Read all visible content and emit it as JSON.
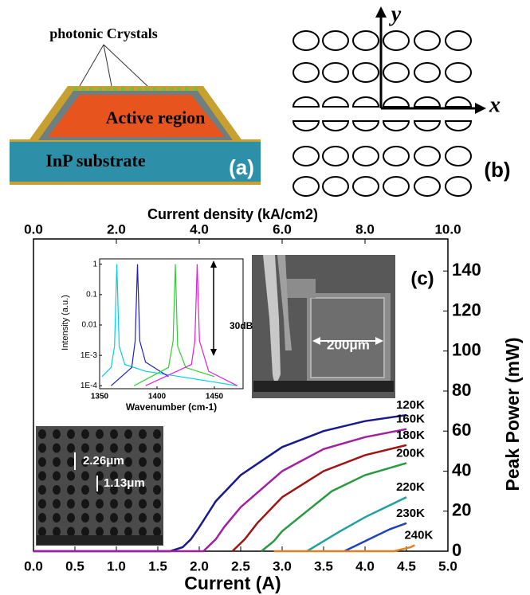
{
  "panel_a": {
    "labels": [
      "photonic Crystals",
      "Active region",
      "InP substrate"
    ],
    "tag": "(a)"
  },
  "panel_b": {
    "axis_x": "x",
    "axis_y": "y",
    "tag": "(b)"
  },
  "panel_c": {
    "tag": "(c)",
    "sem_large_label": "200μm",
    "sem_small_labels": [
      "2.26μm",
      "1.13μm"
    ],
    "spectrum_span": "30dB"
  },
  "chart_data": [
    {
      "type": "line",
      "x_label": "Current (A)",
      "x2_label": "Current density (kA/cm2)",
      "y_label": "Peak Power (mW)",
      "xlim": [
        0,
        5
      ],
      "xticks": [
        {
          "value": 0,
          "label": "0.0"
        },
        {
          "value": 0.5,
          "label": "0.5"
        },
        {
          "value": 1,
          "label": "1.0"
        },
        {
          "value": 1.5,
          "label": "1.5"
        },
        {
          "value": 2,
          "label": "2.0"
        },
        {
          "value": 2.5,
          "label": "2.5"
        },
        {
          "value": 3,
          "label": "3.0"
        },
        {
          "value": 3.5,
          "label": "3.5"
        },
        {
          "value": 4,
          "label": "4.0"
        },
        {
          "value": 4.5,
          "label": "4.5"
        },
        {
          "value": 5,
          "label": "5.0"
        }
      ],
      "x2lim": [
        0,
        10
      ],
      "x2ticks": [
        {
          "value": 0,
          "label": "0.0"
        },
        {
          "value": 2,
          "label": "2.0"
        },
        {
          "value": 4,
          "label": "4.0"
        },
        {
          "value": 6,
          "label": "6.0"
        },
        {
          "value": 8,
          "label": "8.0"
        },
        {
          "value": 10,
          "label": "10.0"
        }
      ],
      "ylim": [
        0,
        156
      ],
      "yticks": [
        0,
        20,
        40,
        60,
        80,
        100,
        120,
        140
      ],
      "series": [
        {
          "name": "120K",
          "color": "#1a1a8c",
          "x": [
            0,
            1.65,
            1.8,
            1.9,
            2.0,
            2.2,
            2.5,
            3.0,
            3.5,
            4.0,
            4.5
          ],
          "values": [
            0,
            0,
            2,
            6,
            12,
            25,
            38,
            52,
            60,
            65,
            68
          ]
        },
        {
          "name": "160K",
          "color": "#a020a0",
          "x": [
            0,
            2.05,
            2.2,
            2.3,
            2.5,
            3.0,
            3.5,
            4.0,
            4.5
          ],
          "values": [
            0,
            0,
            6,
            12,
            22,
            40,
            51,
            57,
            61
          ]
        },
        {
          "name": "180K",
          "color": "#a01414",
          "x": [
            2.4,
            2.55,
            2.7,
            3.0,
            3.5,
            4.0,
            4.5
          ],
          "values": [
            0,
            6,
            14,
            27,
            40,
            48,
            53
          ]
        },
        {
          "name": "200K",
          "color": "#2a9a40",
          "x": [
            2.75,
            2.9,
            3.0,
            3.3,
            3.6,
            4.0,
            4.5
          ],
          "values": [
            0,
            5,
            10,
            20,
            30,
            38,
            44
          ]
        },
        {
          "name": "220K",
          "color": "#20a0a0",
          "x": [
            3.3,
            3.5,
            3.7,
            4.0,
            4.3,
            4.5
          ],
          "values": [
            0,
            5,
            10,
            17,
            23,
            27
          ]
        },
        {
          "name": "230K",
          "color": "#2040c0",
          "x": [
            3.75,
            3.9,
            4.1,
            4.3,
            4.5
          ],
          "values": [
            0,
            3,
            7,
            11,
            14
          ]
        },
        {
          "name": "240K",
          "color": "#e08020",
          "x": [
            2.9,
            4.35,
            4.45,
            4.55,
            4.6
          ],
          "values": [
            0,
            0,
            1,
            2,
            3
          ]
        }
      ]
    },
    {
      "type": "line",
      "log_y": true,
      "x_label": "Wavenumber (cm-1)",
      "y_label": "Intensity (a.u.)",
      "xlim": [
        1350,
        1475
      ],
      "xticks": [
        1350,
        1400,
        1450
      ],
      "ylim": [
        8e-05,
        1.5
      ],
      "yticks": [
        1,
        0.1,
        0.01,
        {
          "value": 0.001,
          "label": "1E-3"
        },
        {
          "value": 0.0001,
          "label": "1E-4"
        }
      ],
      "series": [
        {
          "name": "120K",
          "color": "#00d0e0",
          "x": [
            1352,
            1360,
            1363,
            1365,
            1367,
            1372,
            1390,
            1420,
            1470
          ],
          "values": [
            0.0002,
            0.0004,
            0.002,
            1,
            0.002,
            0.0005,
            0.0003,
            0.0002,
            0.0001
          ]
        },
        {
          "name": "160K",
          "color": "#2020c0",
          "x": [
            1360,
            1378,
            1381,
            1383,
            1385,
            1390,
            1410
          ],
          "values": [
            0.0001,
            0.0004,
            0.003,
            1,
            0.003,
            0.0006,
            0.0002
          ]
        },
        {
          "name": "200K",
          "color": "#30d030",
          "x": [
            1380,
            1410,
            1414,
            1416,
            1418,
            1425,
            1450
          ],
          "values": [
            0.0001,
            0.0004,
            0.003,
            1,
            0.002,
            0.0004,
            0.0002
          ]
        },
        {
          "name": "220K",
          "color": "#e020e0",
          "x": [
            1390,
            1430,
            1433,
            1435,
            1437,
            1445,
            1470
          ],
          "values": [
            0.0001,
            0.0005,
            0.003,
            1,
            0.003,
            0.0003,
            0.0001
          ]
        }
      ]
    }
  ]
}
